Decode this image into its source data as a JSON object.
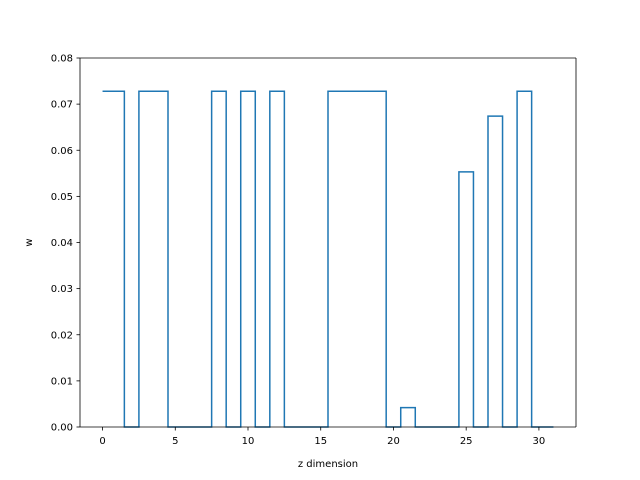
{
  "chart_data": {
    "type": "line",
    "drawstyle": "steps-mid",
    "title": "",
    "xlabel": "z dimension",
    "ylabel": "w",
    "xlim": [
      -1.55,
      32.55
    ],
    "ylim": [
      0,
      0.08
    ],
    "xticks": [
      0,
      5,
      10,
      15,
      20,
      25,
      30
    ],
    "yticks": [
      0.0,
      0.01,
      0.02,
      0.03,
      0.04,
      0.05,
      0.06,
      0.07,
      0.08
    ],
    "ytick_labels": [
      "0.00",
      "0.01",
      "0.02",
      "0.03",
      "0.04",
      "0.05",
      "0.06",
      "0.07",
      "0.08"
    ],
    "grid": false,
    "legend": "none",
    "series": [
      {
        "color": "#1f77b4",
        "x": [
          0,
          1,
          2,
          3,
          4,
          5,
          6,
          7,
          8,
          9,
          10,
          11,
          12,
          13,
          14,
          15,
          16,
          17,
          18,
          19,
          20,
          21,
          22,
          23,
          24,
          25,
          26,
          27,
          28,
          29,
          30,
          31
        ],
        "y": [
          0.0728,
          0.0728,
          0,
          0.0728,
          0.0728,
          0,
          0,
          0,
          0.0728,
          0,
          0.0728,
          0,
          0.0728,
          0,
          0,
          0,
          0.0728,
          0.0728,
          0.0728,
          0.0728,
          0,
          0.0042,
          0,
          0,
          0,
          0.0553,
          0,
          0.0674,
          0,
          0.0728,
          0,
          0
        ]
      }
    ]
  }
}
